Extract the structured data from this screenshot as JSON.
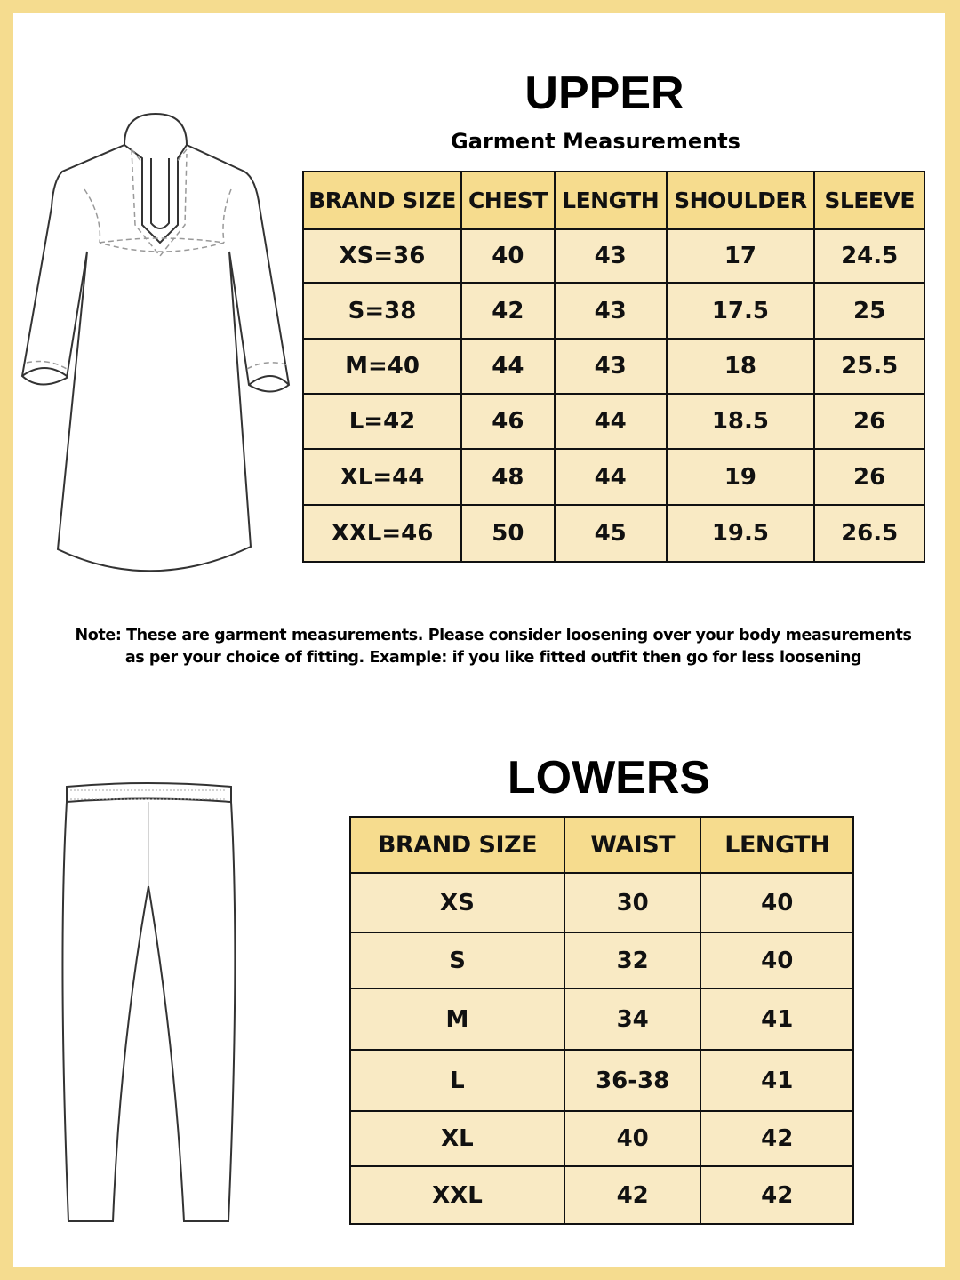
{
  "upper": {
    "title": "UPPER",
    "subtitle": "Garment Measurements",
    "headers": [
      "BRAND SIZE",
      "CHEST",
      "LENGTH",
      "SHOULDER",
      "SLEEVE"
    ],
    "rows": [
      [
        "XS=36",
        "40",
        "43",
        "17",
        "24.5"
      ],
      [
        "S=38",
        "42",
        "43",
        "17.5",
        "25"
      ],
      [
        "M=40",
        "44",
        "43",
        "18",
        "25.5"
      ],
      [
        "L=42",
        "46",
        "44",
        "18.5",
        "26"
      ],
      [
        "XL=44",
        "48",
        "44",
        "19",
        "26"
      ],
      [
        "XXL=46",
        "50",
        "45",
        "19.5",
        "26.5"
      ]
    ]
  },
  "note": {
    "line1": "Note: These are garment measurements. Please consider loosening over your body measurements",
    "line2": "as per your choice of fitting. Example: if you like fitted outfit then go for less loosening"
  },
  "lowers": {
    "title": "LOWERS",
    "headers": [
      "BRAND SIZE",
      "WAIST",
      "LENGTH"
    ],
    "rows": [
      [
        "XS",
        "30",
        "40"
      ],
      [
        "S",
        "32",
        "40"
      ],
      [
        "M",
        "34",
        "41"
      ],
      [
        "L",
        "36-38",
        "41"
      ],
      [
        "XL",
        "40",
        "42"
      ],
      [
        "XXL",
        "42",
        "42"
      ]
    ]
  },
  "colors": {
    "frame": "#f5dc8f",
    "header": "#f6dc8e",
    "cell": "#f9eac4"
  }
}
